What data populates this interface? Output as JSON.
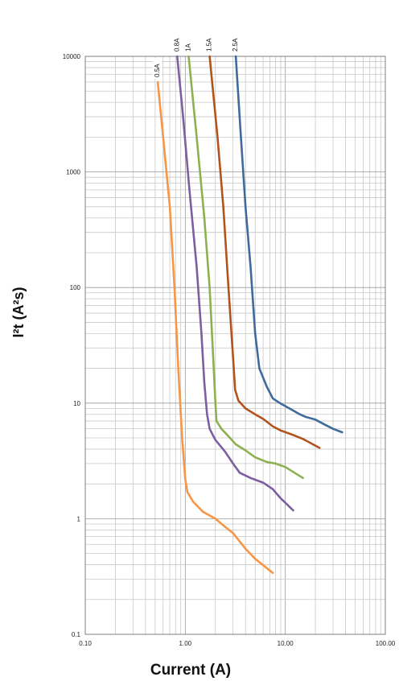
{
  "chart_data": {
    "type": "line",
    "xlabel": "Current (A)",
    "ylabel": "I²t (A²s)",
    "x_scale": "log",
    "y_scale": "log",
    "xlim": [
      0.1,
      100
    ],
    "ylim": [
      0.1,
      10000
    ],
    "grid": true,
    "x_tick_labels": [
      "0.10",
      "1.00",
      "10.00",
      "100.00"
    ],
    "y_tick_labels": [
      "0.1",
      "1",
      "10",
      "100",
      "1000",
      "10000"
    ],
    "series": [
      {
        "name": "0.5A",
        "color": "#f79646",
        "points": [
          [
            0.53,
            6000
          ],
          [
            0.6,
            2000
          ],
          [
            0.7,
            500
          ],
          [
            0.78,
            100
          ],
          [
            0.85,
            20
          ],
          [
            0.93,
            5
          ],
          [
            1.0,
            2.2
          ],
          [
            1.05,
            1.7
          ],
          [
            1.2,
            1.4
          ],
          [
            1.5,
            1.15
          ],
          [
            2.0,
            1.0
          ],
          [
            2.5,
            0.85
          ],
          [
            3.0,
            0.75
          ],
          [
            4.0,
            0.55
          ],
          [
            5.0,
            0.45
          ],
          [
            7.5,
            0.34
          ]
        ]
      },
      {
        "name": "0.8A",
        "color": "#7b5fa0",
        "points": [
          [
            0.83,
            10000
          ],
          [
            0.95,
            3000
          ],
          [
            1.1,
            700
          ],
          [
            1.3,
            150
          ],
          [
            1.45,
            40
          ],
          [
            1.55,
            15
          ],
          [
            1.65,
            8
          ],
          [
            1.75,
            6
          ],
          [
            2.0,
            4.8
          ],
          [
            2.5,
            3.8
          ],
          [
            3.0,
            3.0
          ],
          [
            3.5,
            2.5
          ],
          [
            4.5,
            2.25
          ],
          [
            6.0,
            2.05
          ],
          [
            7.5,
            1.8
          ],
          [
            9.0,
            1.5
          ],
          [
            12.0,
            1.18
          ]
        ]
      },
      {
        "name": "1A",
        "color": "#8db050",
        "points": [
          [
            1.08,
            10000
          ],
          [
            1.3,
            2000
          ],
          [
            1.55,
            400
          ],
          [
            1.75,
            100
          ],
          [
            1.9,
            25
          ],
          [
            2.0,
            10
          ],
          [
            2.05,
            7
          ],
          [
            2.3,
            6
          ],
          [
            2.8,
            5.0
          ],
          [
            3.2,
            4.4
          ],
          [
            4.0,
            3.9
          ],
          [
            5.0,
            3.4
          ],
          [
            6.5,
            3.1
          ],
          [
            8.0,
            3.0
          ],
          [
            10.0,
            2.8
          ],
          [
            15.0,
            2.25
          ]
        ]
      },
      {
        "name": "1.5A",
        "color": "#b2531c",
        "points": [
          [
            1.75,
            10000
          ],
          [
            2.1,
            2000
          ],
          [
            2.4,
            500
          ],
          [
            2.7,
            100
          ],
          [
            3.0,
            25
          ],
          [
            3.15,
            13
          ],
          [
            3.4,
            10.5
          ],
          [
            4.0,
            9.0
          ],
          [
            5.0,
            8.0
          ],
          [
            6.0,
            7.3
          ],
          [
            7.5,
            6.3
          ],
          [
            9.0,
            5.8
          ],
          [
            12.0,
            5.3
          ],
          [
            15.0,
            4.9
          ],
          [
            22.0,
            4.1
          ]
        ]
      },
      {
        "name": "2.5A",
        "color": "#3e6a9c",
        "points": [
          [
            3.2,
            10000
          ],
          [
            3.6,
            2000
          ],
          [
            4.0,
            500
          ],
          [
            4.5,
            150
          ],
          [
            5.0,
            40
          ],
          [
            5.5,
            20
          ],
          [
            6.5,
            14
          ],
          [
            7.5,
            11
          ],
          [
            9.0,
            9.9
          ],
          [
            11.0,
            9.0
          ],
          [
            14.0,
            8.0
          ],
          [
            16.0,
            7.6
          ],
          [
            20.0,
            7.2
          ],
          [
            25.0,
            6.5
          ],
          [
            30.0,
            6.0
          ],
          [
            37.0,
            5.6
          ]
        ]
      }
    ]
  }
}
